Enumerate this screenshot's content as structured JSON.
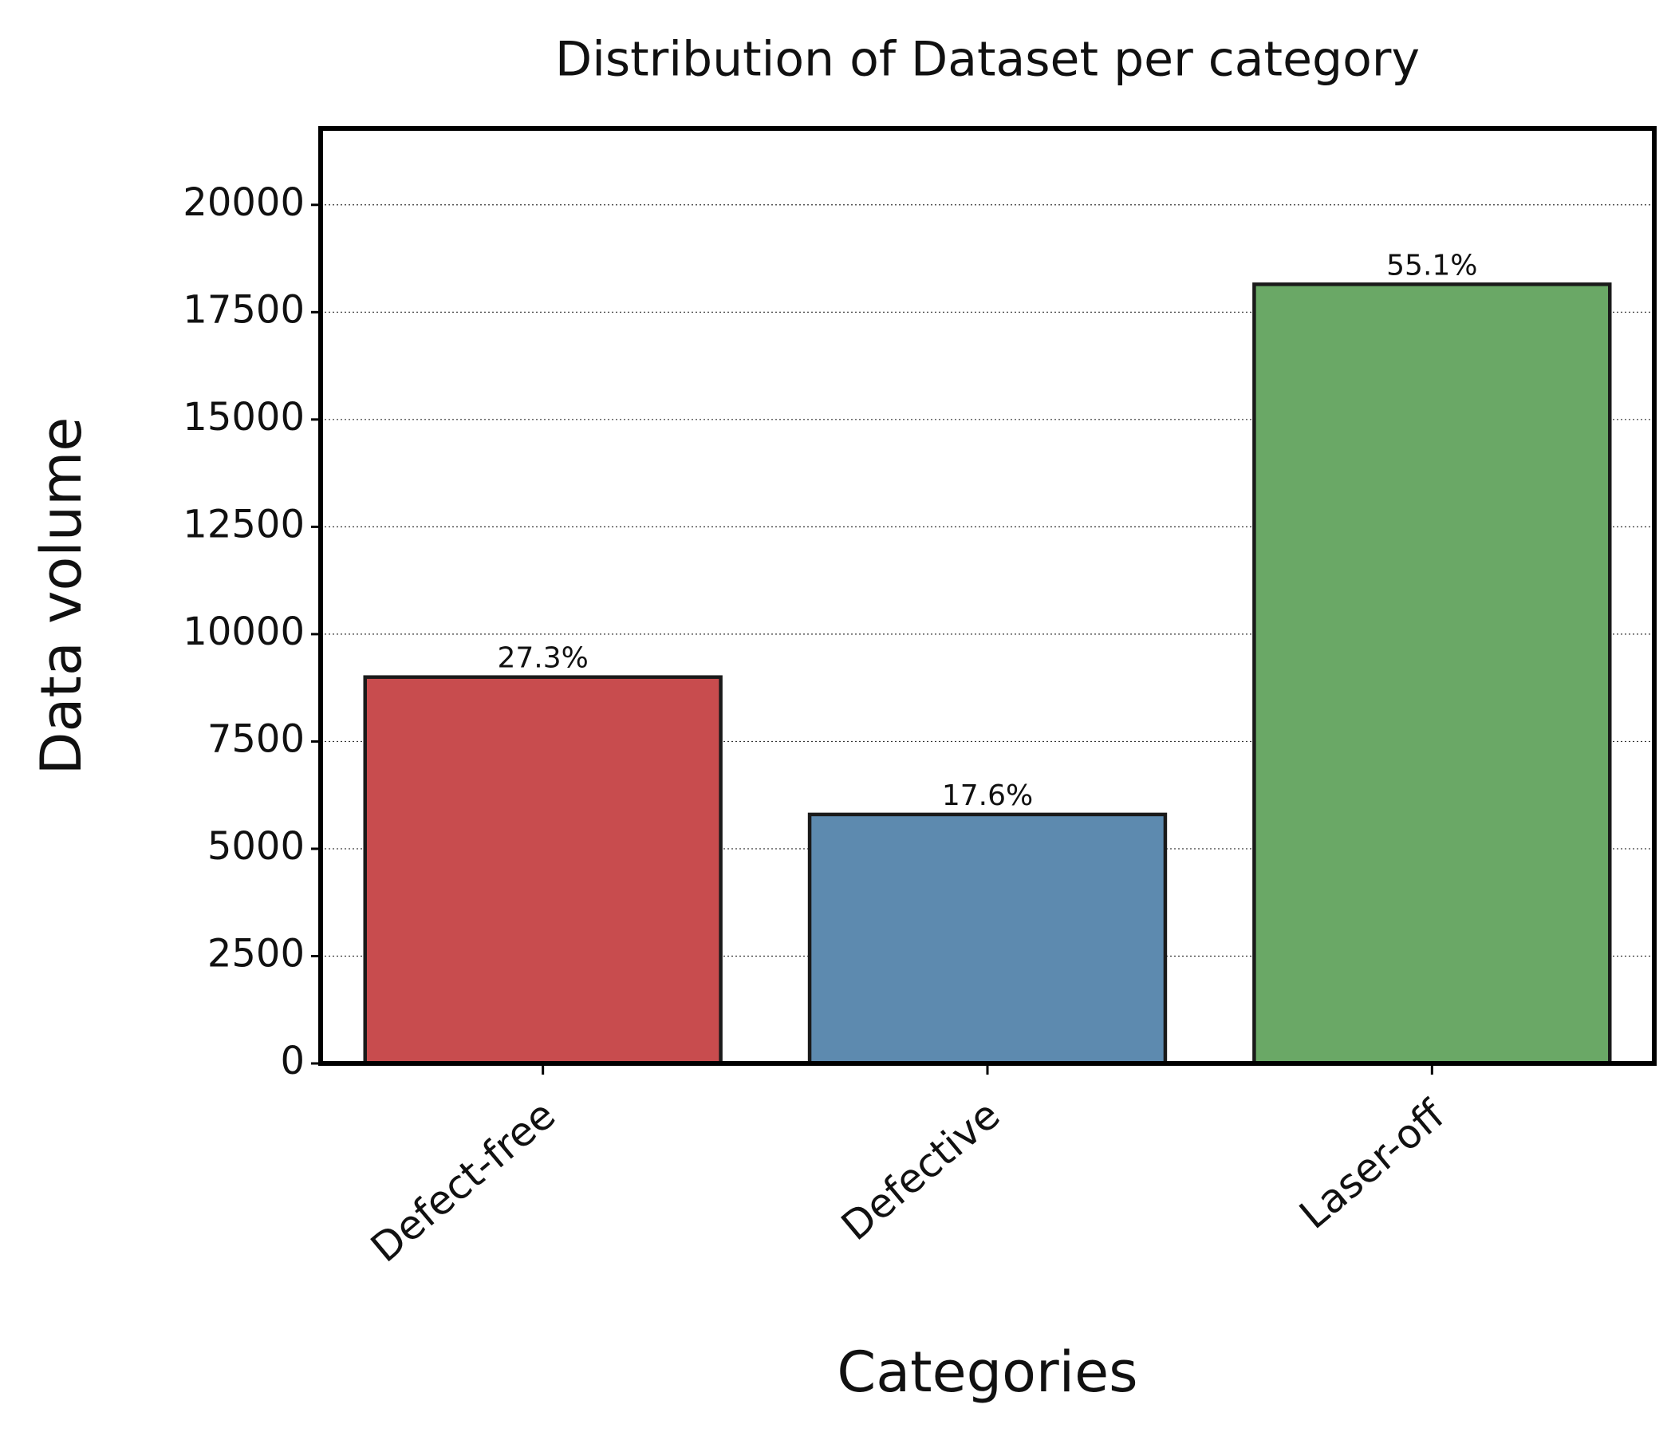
{
  "chart_data": {
    "type": "bar",
    "title": "Distribution of Dataset per category",
    "x_label": "Categories",
    "y_label": "Data volume",
    "categories": [
      "Defect-free",
      "Defective",
      "Laser-off"
    ],
    "values": [
      9000,
      5800,
      18150
    ],
    "percent_labels": [
      "27.3%",
      "17.6%",
      "55.1%"
    ],
    "colors": [
      "#c84c4e",
      "#5d8aaf",
      "#6aa866"
    ],
    "ylim": [
      0,
      21780
    ],
    "yticks": [
      0,
      2500,
      5000,
      7500,
      10000,
      12500,
      15000,
      17500,
      20000
    ],
    "grid": true
  }
}
